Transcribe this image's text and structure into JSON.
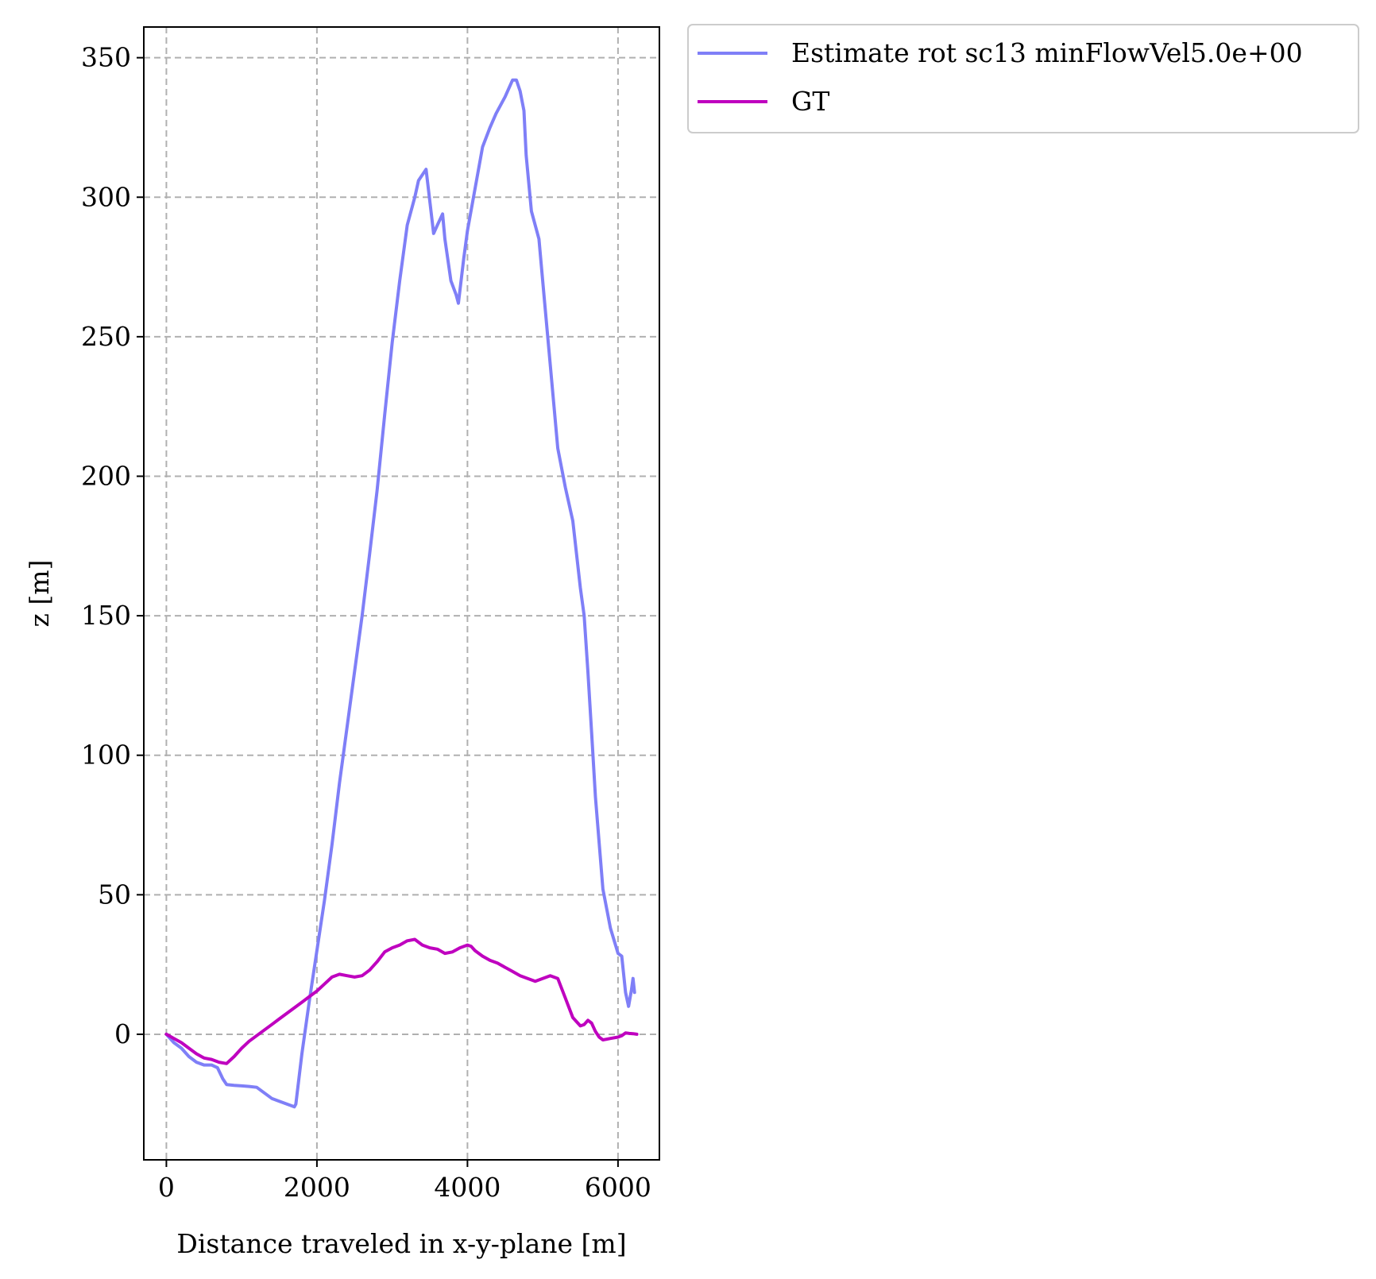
{
  "chart_data": {
    "type": "line",
    "xlabel": "Distance traveled in x-y-plane [m]",
    "ylabel": "z [m]",
    "xlim": [
      -300,
      6550
    ],
    "ylim": [
      -45,
      361
    ],
    "xticks": [
      0,
      2000,
      4000,
      6000
    ],
    "yticks": [
      0,
      50,
      100,
      150,
      200,
      250,
      300,
      350
    ],
    "xtick_labels": [
      "0",
      "2000",
      "4000",
      "6000"
    ],
    "ytick_labels": [
      "0",
      "50",
      "100",
      "150",
      "200",
      "250",
      "300",
      "350"
    ],
    "grid": true,
    "legend_position": "outside-top-right",
    "series": [
      {
        "name": "Estimate rot sc13 minFlowVel5.0e+00",
        "color": "#7f7ff7",
        "x": [
          0,
          100,
          200,
          300,
          400,
          500,
          600,
          680,
          750,
          800,
          900,
          1000,
          1100,
          1200,
          1300,
          1400,
          1500,
          1600,
          1650,
          1700,
          1720,
          1800,
          1900,
          2000,
          2100,
          2200,
          2300,
          2400,
          2500,
          2600,
          2700,
          2800,
          2900,
          3000,
          3100,
          3200,
          3300,
          3350,
          3450,
          3550,
          3600,
          3670,
          3700,
          3780,
          3850,
          3880,
          3950,
          4000,
          4100,
          4200,
          4300,
          4380,
          4500,
          4600,
          4650,
          4700,
          4750,
          4780,
          4850,
          4950,
          5000,
          5100,
          5200,
          5300,
          5400,
          5500,
          5550,
          5600,
          5650,
          5700,
          5800,
          5900,
          6000,
          6050,
          6100,
          6140,
          6180,
          6200,
          6220
        ],
        "y": [
          0,
          -3,
          -5,
          -8,
          -10,
          -11,
          -11,
          -12,
          -16,
          -18,
          -18.3,
          -18.5,
          -18.7,
          -19,
          -21,
          -23,
          -24,
          -25,
          -25.5,
          -26,
          -25,
          -7,
          12,
          30,
          48,
          68,
          90,
          110,
          130,
          150,
          172,
          195,
          222,
          248,
          270,
          290,
          300,
          306,
          310,
          287,
          290,
          294,
          285,
          270,
          265,
          262,
          278,
          288,
          303,
          318,
          325,
          330,
          336,
          342,
          342,
          338,
          331,
          315,
          295,
          285,
          270,
          240,
          210,
          196,
          184,
          160,
          150,
          130,
          108,
          85,
          52,
          38,
          29,
          28,
          15,
          10,
          16,
          20,
          15
        ]
      },
      {
        "name": "GT",
        "color": "#bf00bf",
        "x": [
          0,
          100,
          200,
          300,
          400,
          500,
          600,
          700,
          800,
          900,
          1000,
          1100,
          1200,
          1300,
          1400,
          1500,
          1600,
          1700,
          1800,
          1900,
          2000,
          2100,
          2200,
          2300,
          2400,
          2500,
          2600,
          2700,
          2800,
          2900,
          3000,
          3100,
          3200,
          3300,
          3400,
          3500,
          3600,
          3700,
          3800,
          3900,
          4000,
          4050,
          4100,
          4200,
          4300,
          4400,
          4500,
          4600,
          4700,
          4800,
          4900,
          5000,
          5100,
          5200,
          5300,
          5400,
          5500,
          5550,
          5600,
          5650,
          5700,
          5750,
          5800,
          5900,
          6000,
          6050,
          6100,
          6150,
          6200,
          6250
        ],
        "y": [
          0,
          -1.5,
          -3,
          -5,
          -7,
          -8.5,
          -9,
          -10,
          -10.5,
          -8,
          -5,
          -2.5,
          -0.5,
          1.5,
          3.5,
          5.5,
          7.5,
          9.5,
          11.5,
          13.5,
          15.5,
          18,
          20.5,
          21.5,
          21,
          20.5,
          21,
          23,
          26,
          29.5,
          31,
          32,
          33.5,
          34,
          32,
          31,
          30.5,
          29,
          29.5,
          31,
          32,
          31.5,
          30,
          28,
          26.5,
          25.5,
          24,
          22.5,
          21,
          20,
          19,
          20,
          21,
          20,
          13,
          6,
          3,
          3.5,
          5,
          4,
          1,
          -1,
          -2,
          -1.5,
          -1,
          -0.5,
          0.5,
          0.3,
          0.2,
          0
        ]
      }
    ]
  }
}
